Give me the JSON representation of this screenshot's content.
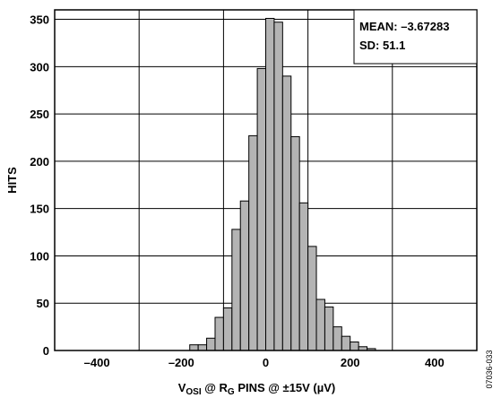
{
  "chart_data": {
    "type": "bar",
    "title": "",
    "xlabel": {
      "parts": [
        {
          "text": "V",
          "sub": false
        },
        {
          "text": "OSI",
          "sub": true
        },
        {
          "text": " @ R",
          "sub": false
        },
        {
          "text": "G",
          "sub": true
        },
        {
          "text": " PINS @  ±15V (µV)",
          "sub": false
        }
      ]
    },
    "ylabel": "HITS",
    "xlim": [
      -500,
      500
    ],
    "ylim": [
      0,
      360
    ],
    "xticks": [
      -400,
      -200,
      0,
      200,
      400
    ],
    "xtick_labels": [
      "–400",
      "–200",
      "0",
      "200",
      "400"
    ],
    "yticks": [
      0,
      50,
      100,
      150,
      200,
      250,
      300,
      350
    ],
    "ytick_labels": [
      "0",
      "50",
      "100",
      "150",
      "200",
      "250",
      "300",
      "350"
    ],
    "grid": true,
    "bar_color": "#b4b4b4",
    "bin_width": 20,
    "bins": [
      {
        "x0": -200,
        "value": 0
      },
      {
        "x0": -180,
        "value": 6
      },
      {
        "x0": -160,
        "value": 6
      },
      {
        "x0": -140,
        "value": 13
      },
      {
        "x0": -120,
        "value": 35
      },
      {
        "x0": -100,
        "value": 45
      },
      {
        "x0": -80,
        "value": 128
      },
      {
        "x0": -60,
        "value": 158
      },
      {
        "x0": -40,
        "value": 227
      },
      {
        "x0": -20,
        "value": 298
      },
      {
        "x0": 0,
        "value": 351
      },
      {
        "x0": 20,
        "value": 347
      },
      {
        "x0": 40,
        "value": 290
      },
      {
        "x0": 60,
        "value": 226
      },
      {
        "x0": 80,
        "value": 156
      },
      {
        "x0": 100,
        "value": 110
      },
      {
        "x0": 120,
        "value": 54
      },
      {
        "x0": 140,
        "value": 46
      },
      {
        "x0": 160,
        "value": 25
      },
      {
        "x0": 180,
        "value": 15
      },
      {
        "x0": 200,
        "value": 9
      },
      {
        "x0": 220,
        "value": 4
      },
      {
        "x0": 240,
        "value": 2
      }
    ],
    "annotations": [
      "MEAN: –3.67283",
      "SD: 51.1"
    ]
  },
  "figure_id": "07036-033"
}
